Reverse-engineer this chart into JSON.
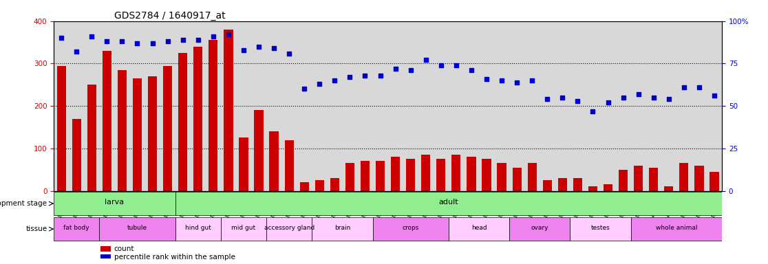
{
  "title": "GDS2784 / 1640917_at",
  "samples": [
    "GSM188092",
    "GSM188093",
    "GSM188094",
    "GSM188095",
    "GSM188100",
    "GSM188101",
    "GSM188102",
    "GSM188103",
    "GSM188072",
    "GSM188073",
    "GSM188074",
    "GSM188075",
    "GSM188076",
    "GSM188077",
    "GSM188078",
    "GSM188079",
    "GSM188080",
    "GSM188081",
    "GSM188082",
    "GSM188083",
    "GSM188084",
    "GSM188085",
    "GSM188086",
    "GSM188087",
    "GSM188088",
    "GSM188089",
    "GSM188090",
    "GSM188091",
    "GSM188096",
    "GSM188097",
    "GSM188098",
    "GSM188099",
    "GSM188104",
    "GSM188105",
    "GSM188106",
    "GSM188107",
    "GSM188108",
    "GSM188109",
    "GSM188110",
    "GSM188111",
    "GSM188112",
    "GSM188113",
    "GSM188114",
    "GSM188115"
  ],
  "counts": [
    295,
    170,
    250,
    330,
    285,
    265,
    270,
    295,
    325,
    340,
    355,
    380,
    125,
    190,
    140,
    120,
    20,
    25,
    30,
    65,
    70,
    70,
    80,
    75,
    85,
    75,
    85,
    80,
    75,
    65,
    55,
    65,
    25,
    30,
    30,
    10,
    15,
    50,
    60,
    55,
    10,
    65,
    60,
    45
  ],
  "percentiles": [
    90,
    82,
    91,
    88,
    88,
    87,
    87,
    88,
    89,
    89,
    91,
    92,
    83,
    85,
    84,
    81,
    60,
    63,
    65,
    67,
    68,
    68,
    72,
    71,
    77,
    74,
    74,
    71,
    66,
    65,
    64,
    65,
    54,
    55,
    53,
    47,
    52,
    55,
    57,
    55,
    54,
    61,
    61,
    56
  ],
  "ylim_left": [
    0,
    400
  ],
  "ylim_right": [
    0,
    100
  ],
  "yticks_left": [
    0,
    100,
    200,
    300,
    400
  ],
  "yticks_right": [
    0,
    25,
    50,
    75,
    100
  ],
  "bar_color": "#cc0000",
  "dot_color": "#0000cc",
  "grid_color": "#000000",
  "bg_color": "#d8d8d8",
  "development_stages": [
    {
      "label": "larva",
      "start": 0,
      "end": 7,
      "color": "#90ee90"
    },
    {
      "label": "adult",
      "start": 7,
      "end": 43,
      "color": "#90ee90"
    }
  ],
  "dev_stage_boundary": 8,
  "tissues": [
    {
      "label": "fat body",
      "start": 0,
      "end": 3,
      "color": "#ee82ee"
    },
    {
      "label": "tubule",
      "start": 3,
      "end": 7,
      "color": "#ee82ee"
    },
    {
      "label": "hind gut",
      "start": 8,
      "end": 11,
      "color": "#ffccff"
    },
    {
      "label": "mid gut",
      "start": 11,
      "end": 14,
      "color": "#ffccff"
    },
    {
      "label": "accessory gland",
      "start": 14,
      "end": 17,
      "color": "#ffccff"
    },
    {
      "label": "brain",
      "start": 17,
      "end": 21,
      "color": "#ffccff"
    },
    {
      "label": "crops",
      "start": 21,
      "end": 26,
      "color": "#ee82ee"
    },
    {
      "label": "head",
      "start": 26,
      "end": 30,
      "color": "#ffccff"
    },
    {
      "label": "ovary",
      "start": 30,
      "end": 34,
      "color": "#ee82ee"
    },
    {
      "label": "testes",
      "start": 34,
      "end": 38,
      "color": "#ffccff"
    },
    {
      "label": "whole animal",
      "start": 38,
      "end": 43,
      "color": "#ee82ee"
    }
  ],
  "xlabel": "",
  "ylabel_left": "",
  "ylabel_right": "",
  "legend_count_label": "count",
  "legend_pct_label": "percentile rank within the sample",
  "dev_stage_label": "development stage",
  "tissue_label": "tissue"
}
